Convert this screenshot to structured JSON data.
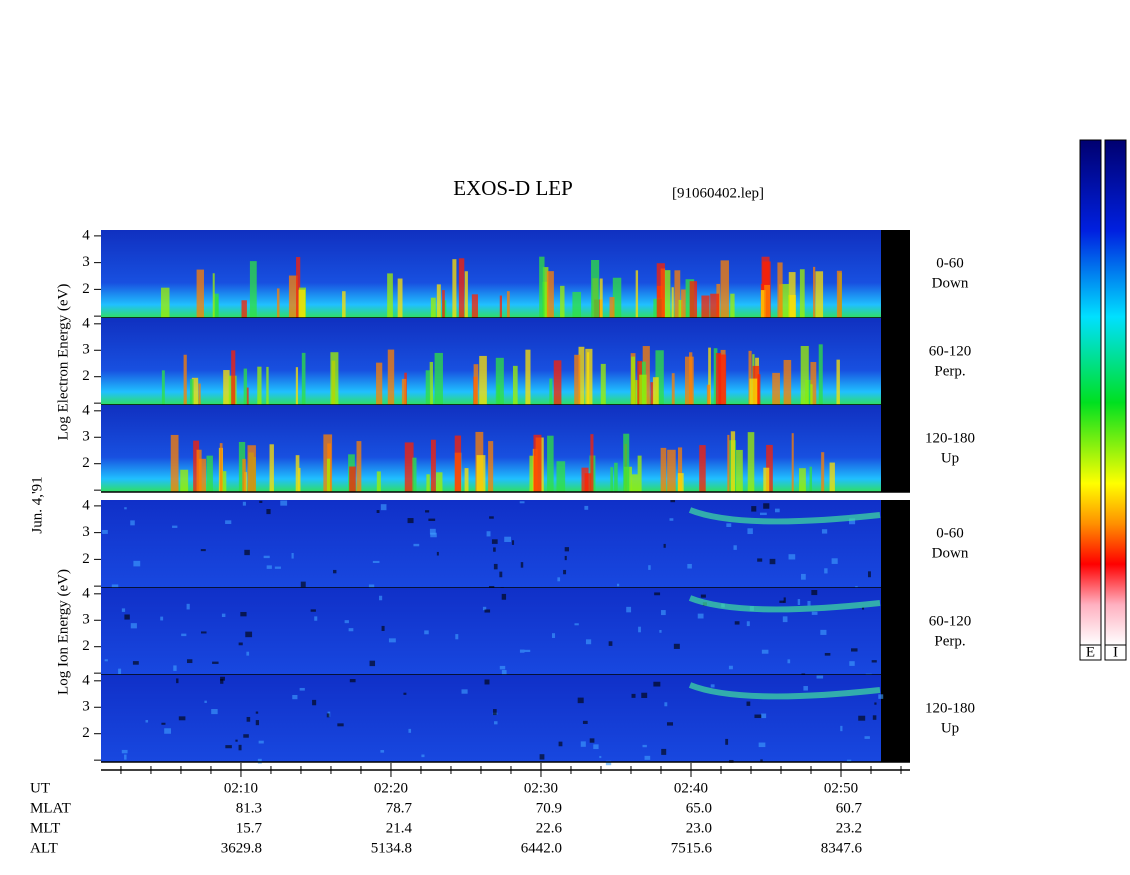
{
  "chart_data": {
    "type": "spectrogram",
    "title": "EXOS-D LEP",
    "file_label": "[91060402.lep]",
    "date_label": "Jun. 4,'91",
    "electron_axis_label": "Log Electron Energy (eV)",
    "ion_axis_label": "Log Ion Energy (eV)",
    "ylim": [
      0.93,
      4.22
    ],
    "yticks": [
      2,
      3,
      4
    ],
    "yminor": [
      1
    ],
    "xlim": [
      0.67,
      54.6
    ],
    "xticks": [
      {
        "value": 10,
        "label": "02:10"
      },
      {
        "value": 20,
        "label": "02:20"
      },
      {
        "value": 30,
        "label": "02:30"
      },
      {
        "value": 40,
        "label": "02:40"
      },
      {
        "value": 50,
        "label": "02:50"
      }
    ],
    "xminor": [
      2,
      4,
      6,
      8,
      12,
      14,
      16,
      18,
      22,
      24,
      26,
      28,
      32,
      34,
      36,
      38,
      42,
      44,
      46,
      48,
      52,
      54
    ],
    "panels": [
      {
        "range": "0-60",
        "direction": "Down"
      },
      {
        "range": "60-120",
        "direction": "Perp."
      },
      {
        "range": "120-180",
        "direction": "Up"
      },
      {
        "range": "0-60",
        "direction": "Down"
      },
      {
        "range": "60-120",
        "direction": "Perp."
      },
      {
        "range": "120-180",
        "direction": "Up"
      }
    ],
    "table": {
      "row_labels": [
        "UT",
        "MLAT",
        "MLT",
        "ALT"
      ],
      "rows": [
        [
          "81.3",
          "78.7",
          "70.9",
          "65.0",
          "60.7"
        ],
        [
          "15.7",
          "21.4",
          "22.6",
          "23.0",
          "23.2"
        ],
        [
          "3629.8",
          "5134.8",
          "6442.0",
          "7515.6",
          "8347.6"
        ]
      ]
    },
    "colorbar_labels": [
      "E",
      "I"
    ]
  }
}
